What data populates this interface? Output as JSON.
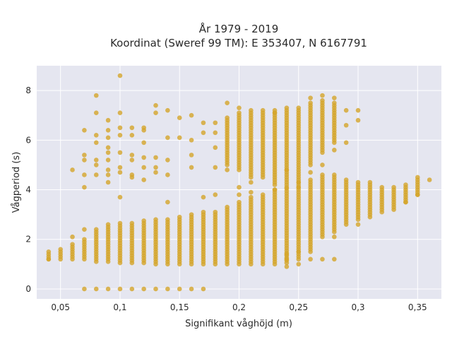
{
  "chart_data": {
    "type": "scatter",
    "title_line1": "År 1979 - 2019",
    "title_line2": "Koordinat (Sweref 99 TM): E 353407, N 6167791",
    "xlabel": "Signifikant våghöjd (m)",
    "ylabel": "Vågperiod (s)",
    "xlim": [
      0.03,
      0.37
    ],
    "ylim": [
      -0.4,
      9.0
    ],
    "x_ticks": [
      {
        "value": 0.05,
        "label": "0,05"
      },
      {
        "value": 0.1,
        "label": "0,1"
      },
      {
        "value": 0.15,
        "label": "0,15"
      },
      {
        "value": 0.2,
        "label": "0,2"
      },
      {
        "value": 0.25,
        "label": "0,25"
      },
      {
        "value": 0.3,
        "label": "0,3"
      },
      {
        "value": 0.35,
        "label": "0,35"
      }
    ],
    "y_ticks": [
      {
        "value": 0,
        "label": "0"
      },
      {
        "value": 2,
        "label": "2"
      },
      {
        "value": 4,
        "label": "4"
      },
      {
        "value": 6,
        "label": "6"
      },
      {
        "value": 8,
        "label": "8"
      }
    ],
    "grid": true,
    "background_color": "#e5e6f0",
    "marker_color": "#d4a52a",
    "columns": [
      {
        "x": 0.04,
        "segments": [
          [
            1.2,
            1.5
          ]
        ]
      },
      {
        "x": 0.05,
        "segments": [
          [
            1.2,
            1.6
          ]
        ]
      },
      {
        "x": 0.06,
        "segments": [
          [
            1.2,
            1.8
          ]
        ]
      },
      {
        "x": 0.07,
        "segments": [
          [
            1.2,
            2.0
          ]
        ]
      },
      {
        "x": 0.08,
        "segments": [
          [
            1.1,
            2.4
          ]
        ]
      },
      {
        "x": 0.09,
        "segments": [
          [
            1.1,
            2.6
          ]
        ]
      },
      {
        "x": 0.1,
        "segments": [
          [
            1.05,
            2.7
          ]
        ]
      },
      {
        "x": 0.11,
        "segments": [
          [
            1.05,
            2.7
          ]
        ]
      },
      {
        "x": 0.12,
        "segments": [
          [
            1.05,
            2.8
          ]
        ]
      },
      {
        "x": 0.13,
        "segments": [
          [
            1.0,
            2.8
          ]
        ]
      },
      {
        "x": 0.14,
        "segments": [
          [
            1.0,
            2.85
          ]
        ]
      },
      {
        "x": 0.15,
        "segments": [
          [
            1.0,
            2.9
          ]
        ]
      },
      {
        "x": 0.16,
        "segments": [
          [
            1.0,
            3.0
          ]
        ]
      },
      {
        "x": 0.17,
        "segments": [
          [
            1.0,
            3.1
          ]
        ]
      },
      {
        "x": 0.18,
        "segments": [
          [
            1.0,
            3.1
          ]
        ]
      },
      {
        "x": 0.19,
        "segments": [
          [
            1.0,
            3.2
          ],
          [
            5.0,
            6.9
          ]
        ]
      },
      {
        "x": 0.2,
        "segments": [
          [
            1.0,
            3.5
          ],
          [
            4.8,
            7.1
          ]
        ]
      },
      {
        "x": 0.21,
        "segments": [
          [
            1.0,
            3.7
          ],
          [
            4.5,
            7.1
          ]
        ]
      },
      {
        "x": 0.22,
        "segments": [
          [
            1.0,
            3.8
          ],
          [
            4.5,
            7.2
          ]
        ]
      },
      {
        "x": 0.23,
        "segments": [
          [
            1.0,
            4.0
          ],
          [
            4.2,
            7.2
          ]
        ]
      },
      {
        "x": 0.24,
        "segments": [
          [
            1.05,
            4.1
          ],
          [
            4.1,
            7.3
          ]
        ]
      },
      {
        "x": 0.25,
        "segments": [
          [
            1.3,
            4.3
          ],
          [
            4.3,
            7.3
          ]
        ]
      },
      {
        "x": 0.26,
        "segments": [
          [
            1.5,
            4.4
          ],
          [
            5.0,
            7.5
          ]
        ]
      },
      {
        "x": 0.27,
        "segments": [
          [
            2.1,
            4.6
          ],
          [
            5.5,
            7.6
          ]
        ]
      },
      {
        "x": 0.28,
        "segments": [
          [
            2.3,
            4.6
          ],
          [
            5.9,
            7.5
          ]
        ]
      },
      {
        "x": 0.29,
        "segments": [
          [
            2.6,
            4.4
          ]
        ]
      },
      {
        "x": 0.3,
        "segments": [
          [
            2.8,
            4.3
          ]
        ]
      },
      {
        "x": 0.31,
        "segments": [
          [
            2.9,
            4.3
          ]
        ]
      },
      {
        "x": 0.32,
        "segments": [
          [
            3.1,
            4.1
          ]
        ]
      },
      {
        "x": 0.33,
        "segments": [
          [
            3.2,
            4.1
          ]
        ]
      },
      {
        "x": 0.34,
        "segments": [
          [
            3.5,
            4.2
          ]
        ]
      },
      {
        "x": 0.35,
        "segments": [
          [
            3.8,
            4.4
          ]
        ]
      }
    ],
    "points": [
      [
        0.07,
        0
      ],
      [
        0.08,
        0
      ],
      [
        0.09,
        0
      ],
      [
        0.1,
        0
      ],
      [
        0.11,
        0
      ],
      [
        0.12,
        0
      ],
      [
        0.13,
        0
      ],
      [
        0.14,
        0
      ],
      [
        0.15,
        0
      ],
      [
        0.16,
        0
      ],
      [
        0.17,
        0
      ],
      [
        0.04,
        1.2
      ],
      [
        0.06,
        2.1
      ],
      [
        0.07,
        2.4
      ],
      [
        0.07,
        4.1
      ],
      [
        0.07,
        4.6
      ],
      [
        0.07,
        5.2
      ],
      [
        0.07,
        5.4
      ],
      [
        0.07,
        6.4
      ],
      [
        0.06,
        4.8
      ],
      [
        0.08,
        7.8
      ],
      [
        0.08,
        7.1
      ],
      [
        0.08,
        6.2
      ],
      [
        0.08,
        5.9
      ],
      [
        0.08,
        5.2
      ],
      [
        0.08,
        5.0
      ],
      [
        0.08,
        4.6
      ],
      [
        0.09,
        6.8
      ],
      [
        0.09,
        6.4
      ],
      [
        0.09,
        6.1
      ],
      [
        0.09,
        5.7
      ],
      [
        0.09,
        5.5
      ],
      [
        0.09,
        5.2
      ],
      [
        0.09,
        4.8
      ],
      [
        0.09,
        4.6
      ],
      [
        0.09,
        4.3
      ],
      [
        0.1,
        8.6
      ],
      [
        0.1,
        7.1
      ],
      [
        0.1,
        6.5
      ],
      [
        0.1,
        6.2
      ],
      [
        0.1,
        5.5
      ],
      [
        0.1,
        4.9
      ],
      [
        0.1,
        4.7
      ],
      [
        0.1,
        3.7
      ],
      [
        0.11,
        6.5
      ],
      [
        0.11,
        6.2
      ],
      [
        0.11,
        5.4
      ],
      [
        0.11,
        5.2
      ],
      [
        0.11,
        4.6
      ],
      [
        0.11,
        4.5
      ],
      [
        0.12,
        6.5
      ],
      [
        0.12,
        6.4
      ],
      [
        0.12,
        5.9
      ],
      [
        0.12,
        5.3
      ],
      [
        0.12,
        4.9
      ],
      [
        0.12,
        4.4
      ],
      [
        0.13,
        7.4
      ],
      [
        0.13,
        7.1
      ],
      [
        0.13,
        5.3
      ],
      [
        0.13,
        4.9
      ],
      [
        0.13,
        4.7
      ],
      [
        0.14,
        7.2
      ],
      [
        0.14,
        6.1
      ],
      [
        0.14,
        5.2
      ],
      [
        0.14,
        4.6
      ],
      [
        0.14,
        3.5
      ],
      [
        0.15,
        6.9
      ],
      [
        0.15,
        6.1
      ],
      [
        0.16,
        7.0
      ],
      [
        0.16,
        6.0
      ],
      [
        0.16,
        5.4
      ],
      [
        0.16,
        4.9
      ],
      [
        0.17,
        6.7
      ],
      [
        0.17,
        6.3
      ],
      [
        0.17,
        3.7
      ],
      [
        0.18,
        6.7
      ],
      [
        0.18,
        6.3
      ],
      [
        0.18,
        5.7
      ],
      [
        0.18,
        4.9
      ],
      [
        0.18,
        3.8
      ],
      [
        0.19,
        7.5
      ],
      [
        0.19,
        4.8
      ],
      [
        0.19,
        3.3
      ],
      [
        0.2,
        7.3
      ],
      [
        0.2,
        4.1
      ],
      [
        0.2,
        3.8
      ],
      [
        0.21,
        7.2
      ],
      [
        0.21,
        4.3
      ],
      [
        0.21,
        3.9
      ],
      [
        0.23,
        7.1
      ],
      [
        0.23,
        4.0
      ],
      [
        0.24,
        0.9
      ],
      [
        0.24,
        1.2
      ],
      [
        0.24,
        1.4
      ],
      [
        0.24,
        4.8
      ],
      [
        0.25,
        1.0
      ],
      [
        0.25,
        1.2
      ],
      [
        0.25,
        1.5
      ],
      [
        0.25,
        4.1
      ],
      [
        0.26,
        1.2
      ],
      [
        0.26,
        4.7
      ],
      [
        0.26,
        7.7
      ],
      [
        0.27,
        1.2
      ],
      [
        0.27,
        7.8
      ],
      [
        0.27,
        5.0
      ],
      [
        0.28,
        1.2
      ],
      [
        0.28,
        2.1
      ],
      [
        0.28,
        5.6
      ],
      [
        0.28,
        7.7
      ],
      [
        0.29,
        6.6
      ],
      [
        0.29,
        7.2
      ],
      [
        0.29,
        5.9
      ],
      [
        0.3,
        6.8
      ],
      [
        0.3,
        7.2
      ],
      [
        0.3,
        2.6
      ],
      [
        0.34,
        3.5
      ],
      [
        0.35,
        3.8
      ],
      [
        0.35,
        4.5
      ],
      [
        0.36,
        4.4
      ]
    ]
  }
}
